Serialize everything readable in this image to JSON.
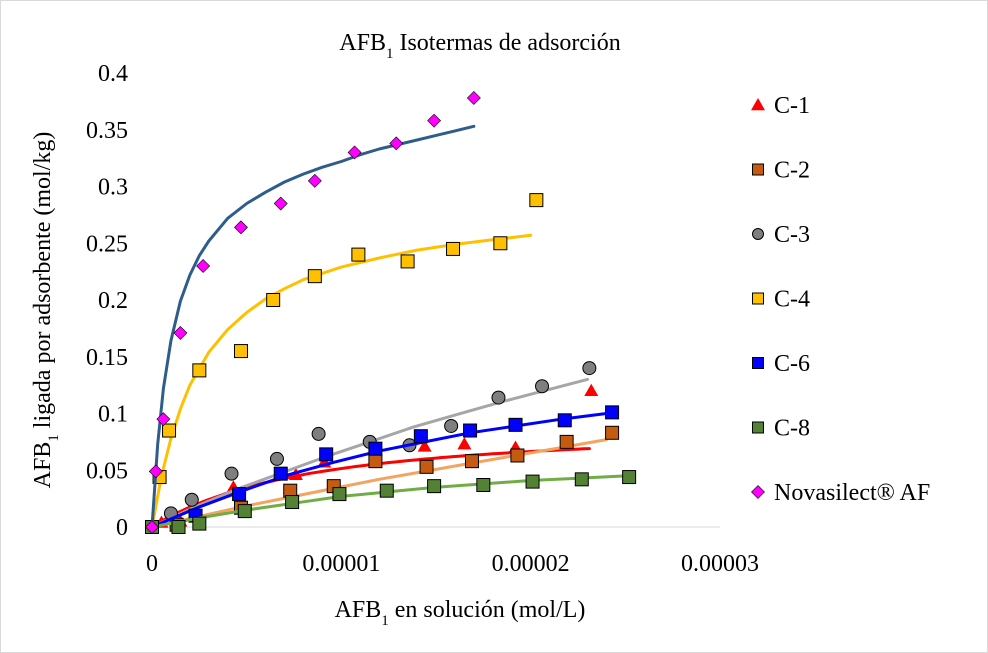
{
  "chart_data": {
    "type": "scatter",
    "title": {
      "base": "AFB",
      "sub": "1",
      "rest": " Isotermas de adsorción"
    },
    "xlabel": {
      "base": "AFB",
      "sub": "1",
      "rest": " en solución (mol/L)"
    },
    "ylabel": {
      "base": "AFB",
      "sub": "1",
      "rest": "  ligada por adsorbente (mol/kg)"
    },
    "xlim": [
      0,
      3e-05
    ],
    "ylim": [
      0,
      0.4
    ],
    "x_ticks": [
      0,
      1e-05,
      2e-05,
      3e-05
    ],
    "x_tick_labels": [
      "0",
      "0.00001",
      "0.00002",
      "0.00003"
    ],
    "y_ticks": [
      0,
      0.05,
      0.1,
      0.15,
      0.2,
      0.25,
      0.3,
      0.35,
      0.4
    ],
    "y_tick_labels": [
      "0",
      "0.05",
      "0.1",
      "0.15",
      "0.2",
      "0.25",
      "0.3",
      "0.35",
      "0.4"
    ],
    "grid": false,
    "legend_position": "right",
    "series": [
      {
        "name": "C-1",
        "marker": "triangle",
        "color": "#ff0000",
        "line_color": "#ff0000",
        "x": [
          0,
          5e-07,
          1.5e-06,
          4.3e-06,
          7.6e-06,
          9.1e-06,
          1.18e-05,
          1.44e-05,
          1.65e-05,
          1.92e-05,
          2.32e-05
        ],
        "y": [
          0,
          0.004,
          0.005,
          0.035,
          0.046,
          0.057,
          0.064,
          0.071,
          0.073,
          0.07,
          0.12
        ],
        "fit": {
          "x": [
            0,
            3e-07,
            6e-07,
            9e-07,
            1.2e-06,
            1.5e-06,
            1.8e-06,
            2.1e-06,
            2.4e-06,
            2.7e-06,
            3e-06,
            3.3e-06,
            3.6e-06,
            3.9e-06,
            4.2e-06,
            4.5e-06,
            4.8e-06,
            5.1e-06,
            5.4e-06,
            5.7e-06,
            6e-06,
            6.3e-06,
            6.6e-06,
            6.9e-06,
            7.2e-06,
            7.5e-06,
            7.8e-06,
            8.1e-06,
            8.4e-06,
            8.7e-06,
            9e-06,
            9.3e-06,
            9.6e-06,
            9.9e-06,
            1.02e-05,
            1.05e-05,
            1.08e-05,
            1.11e-05,
            1.14e-05,
            1.17e-05,
            1.2e-05,
            1.23e-05,
            1.26e-05,
            1.29e-05,
            1.32e-05,
            1.35e-05,
            1.38e-05,
            1.41e-05,
            1.44e-05,
            1.47e-05,
            1.5e-05,
            1.53e-05,
            1.56e-05,
            1.59e-05,
            1.62e-05,
            1.65e-05,
            1.68e-05,
            1.71e-05,
            1.74e-05,
            1.77e-05,
            1.8e-05,
            1.83e-05,
            1.86e-05,
            1.89e-05,
            1.92e-05,
            1.95e-05,
            1.98e-05,
            2.01e-05,
            2.04e-05,
            2.07e-05,
            2.1e-05,
            2.13e-05,
            2.16e-05,
            2.19e-05,
            2.22e-05,
            2.25e-05,
            2.28e-05,
            2.31e-05
          ],
          "y": [
            0,
            0.0032,
            0.006,
            0.0087,
            0.0113,
            0.0137,
            0.016,
            0.0182,
            0.0203,
            0.0223,
            0.0242,
            0.026,
            0.0277,
            0.0294,
            0.031,
            0.0325,
            0.0339,
            0.0353,
            0.0367,
            0.0379,
            0.0392,
            0.0403,
            0.0415,
            0.0425,
            0.0436,
            0.0446,
            0.0455,
            0.0465,
            0.0474,
            0.0482,
            0.049,
            0.0498,
            0.0506,
            0.0513,
            0.052,
            0.0527,
            0.0534,
            0.054,
            0.0546,
            0.0552,
            0.0558,
            0.0564,
            0.0569,
            0.0574,
            0.058,
            0.0585,
            0.0589,
            0.0594,
            0.0599,
            0.0603,
            0.0607,
            0.0612,
            0.0616,
            0.062,
            0.0624,
            0.0627,
            0.0631,
            0.0635,
            0.0638,
            0.0641,
            0.0645,
            0.0648,
            0.0651,
            0.0654,
            0.0657,
            0.066,
            0.0663,
            0.0666,
            0.0669,
            0.0671,
            0.0674,
            0.0677,
            0.0679,
            0.0682,
            0.0684,
            0.0686,
            0.0689,
            0.0691
          ]
        }
      },
      {
        "name": "C-2",
        "marker": "square",
        "color": "#c55a11",
        "line_color": "#f4a460",
        "x": [
          0,
          1.3e-06,
          4.7e-06,
          7.3e-06,
          9.6e-06,
          1.18e-05,
          1.45e-05,
          1.69e-05,
          1.93e-05,
          2.19e-05,
          2.43e-05
        ],
        "y": [
          0,
          0.002,
          0.017,
          0.032,
          0.036,
          0.058,
          0.053,
          0.058,
          0.063,
          0.075,
          0.083
        ],
        "fit": {
          "x": [
            0,
            2.4e-06,
            4.8e-06,
            7.2e-06,
            9.6e-06,
            1.2e-05,
            1.44e-05,
            1.68e-05,
            1.92e-05,
            2.16e-05,
            2.4e-05
          ],
          "y": [
            0,
            0.009,
            0.018,
            0.026,
            0.034,
            0.042,
            0.049,
            0.056,
            0.063,
            0.07,
            0.077
          ]
        }
      },
      {
        "name": "C-3",
        "marker": "circle",
        "color": "#7f7f7f",
        "line_color": "#a6a6a6",
        "x": [
          0,
          1e-06,
          2.1e-06,
          4.2e-06,
          6.6e-06,
          8.8e-06,
          1.15e-05,
          1.36e-05,
          1.58e-05,
          1.83e-05,
          2.06e-05,
          2.31e-05
        ],
        "y": [
          0,
          0.012,
          0.024,
          0.047,
          0.06,
          0.082,
          0.075,
          0.072,
          0.089,
          0.114,
          0.124,
          0.14
        ],
        "fit": {
          "x": [
            0,
            2.3e-06,
            4.6e-06,
            6.9e-06,
            9.2e-06,
            1.15e-05,
            1.38e-05,
            1.61e-05,
            1.84e-05,
            2.07e-05,
            2.3e-05
          ],
          "y": [
            0,
            0.018,
            0.034,
            0.048,
            0.062,
            0.075,
            0.088,
            0.099,
            0.11,
            0.12,
            0.13
          ]
        }
      },
      {
        "name": "C-4",
        "marker": "square",
        "color": "#ffc000",
        "line_color": "#ffc000",
        "x": [
          0,
          4e-07,
          9e-07,
          2.5e-06,
          4.7e-06,
          6.4e-06,
          8.6e-06,
          1.09e-05,
          1.35e-05,
          1.59e-05,
          1.84e-05,
          2.03e-05
        ],
        "y": [
          0,
          0.044,
          0.085,
          0.138,
          0.155,
          0.2,
          0.221,
          0.24,
          0.234,
          0.245,
          0.25,
          0.288
        ],
        "fit": {
          "x": [
            0,
            5e-07,
            1e-06,
            1.5e-06,
            2e-06,
            3e-06,
            4e-06,
            5e-06,
            6e-06,
            7e-06,
            8e-06,
            1e-05,
            1.2e-05,
            1.4e-05,
            1.6e-05,
            1.8e-05,
            2e-05
          ],
          "y": [
            0,
            0.045,
            0.078,
            0.104,
            0.125,
            0.154,
            0.174,
            0.189,
            0.201,
            0.21,
            0.218,
            0.229,
            0.237,
            0.244,
            0.249,
            0.253,
            0.257
          ]
        }
      },
      {
        "name": "C-6",
        "marker": "square",
        "color": "#0000ff",
        "line_color": "#0000ff",
        "x": [
          0,
          2.3e-06,
          4.6e-06,
          6.8e-06,
          9.2e-06,
          1.18e-05,
          1.42e-05,
          1.68e-05,
          1.92e-05,
          2.18e-05,
          2.43e-05
        ],
        "y": [
          0,
          0.01,
          0.029,
          0.047,
          0.064,
          0.069,
          0.08,
          0.085,
          0.09,
          0.094,
          0.101
        ],
        "fit": {
          "x": [
            0,
            2.4e-06,
            4.8e-06,
            7.2e-06,
            9.6e-06,
            1.2e-05,
            1.44e-05,
            1.68e-05,
            1.92e-05,
            2.16e-05,
            2.4e-05
          ],
          "y": [
            0,
            0.017,
            0.032,
            0.046,
            0.057,
            0.067,
            0.075,
            0.083,
            0.089,
            0.095,
            0.1
          ]
        }
      },
      {
        "name": "C-8",
        "marker": "square",
        "color": "#548235",
        "line_color": "#70ad47",
        "x": [
          0,
          1.4e-06,
          2.5e-06,
          4.9e-06,
          7.4e-06,
          9.9e-06,
          1.24e-05,
          1.49e-05,
          1.75e-05,
          2.01e-05,
          2.27e-05,
          2.52e-05
        ],
        "y": [
          0,
          0.0,
          0.003,
          0.014,
          0.022,
          0.029,
          0.032,
          0.036,
          0.037,
          0.04,
          0.042,
          0.044
        ],
        "fit": {
          "x": [
            0,
            2.5e-06,
            5e-06,
            7.5e-06,
            1e-05,
            1.25e-05,
            1.5e-05,
            1.75e-05,
            2e-05,
            2.25e-05,
            2.5e-05
          ],
          "y": [
            0,
            0.008,
            0.015,
            0.021,
            0.027,
            0.031,
            0.035,
            0.038,
            0.041,
            0.043,
            0.045
          ]
        }
      },
      {
        "name": "Novasilect® AF",
        "marker": "diamond",
        "color": "#ff00ff",
        "line_color": "#2e5d8c",
        "x": [
          0,
          2e-07,
          6e-07,
          1.5e-06,
          2.7e-06,
          4.7e-06,
          6.8e-06,
          8.6e-06,
          1.07e-05,
          1.29e-05,
          1.49e-05,
          1.7e-05
        ],
        "y": [
          0,
          0.049,
          0.095,
          0.171,
          0.23,
          0.264,
          0.285,
          0.305,
          0.33,
          0.338,
          0.358,
          0.378
        ],
        "fit": {
          "x": [
            0,
            3e-07,
            6e-07,
            1e-06,
            1.5e-06,
            2e-06,
            2.5e-06,
            3e-06,
            4e-06,
            5e-06,
            6e-06,
            7e-06,
            8e-06,
            9e-06,
            1e-05,
            1.1e-05,
            1.2e-05,
            1.3e-05,
            1.4e-05,
            1.5e-05,
            1.6e-05,
            1.7e-05
          ],
          "y": [
            0,
            0.073,
            0.122,
            0.164,
            0.199,
            0.222,
            0.239,
            0.252,
            0.272,
            0.285,
            0.295,
            0.304,
            0.311,
            0.317,
            0.322,
            0.328,
            0.333,
            0.337,
            0.341,
            0.345,
            0.349,
            0.353
          ]
        }
      }
    ]
  }
}
